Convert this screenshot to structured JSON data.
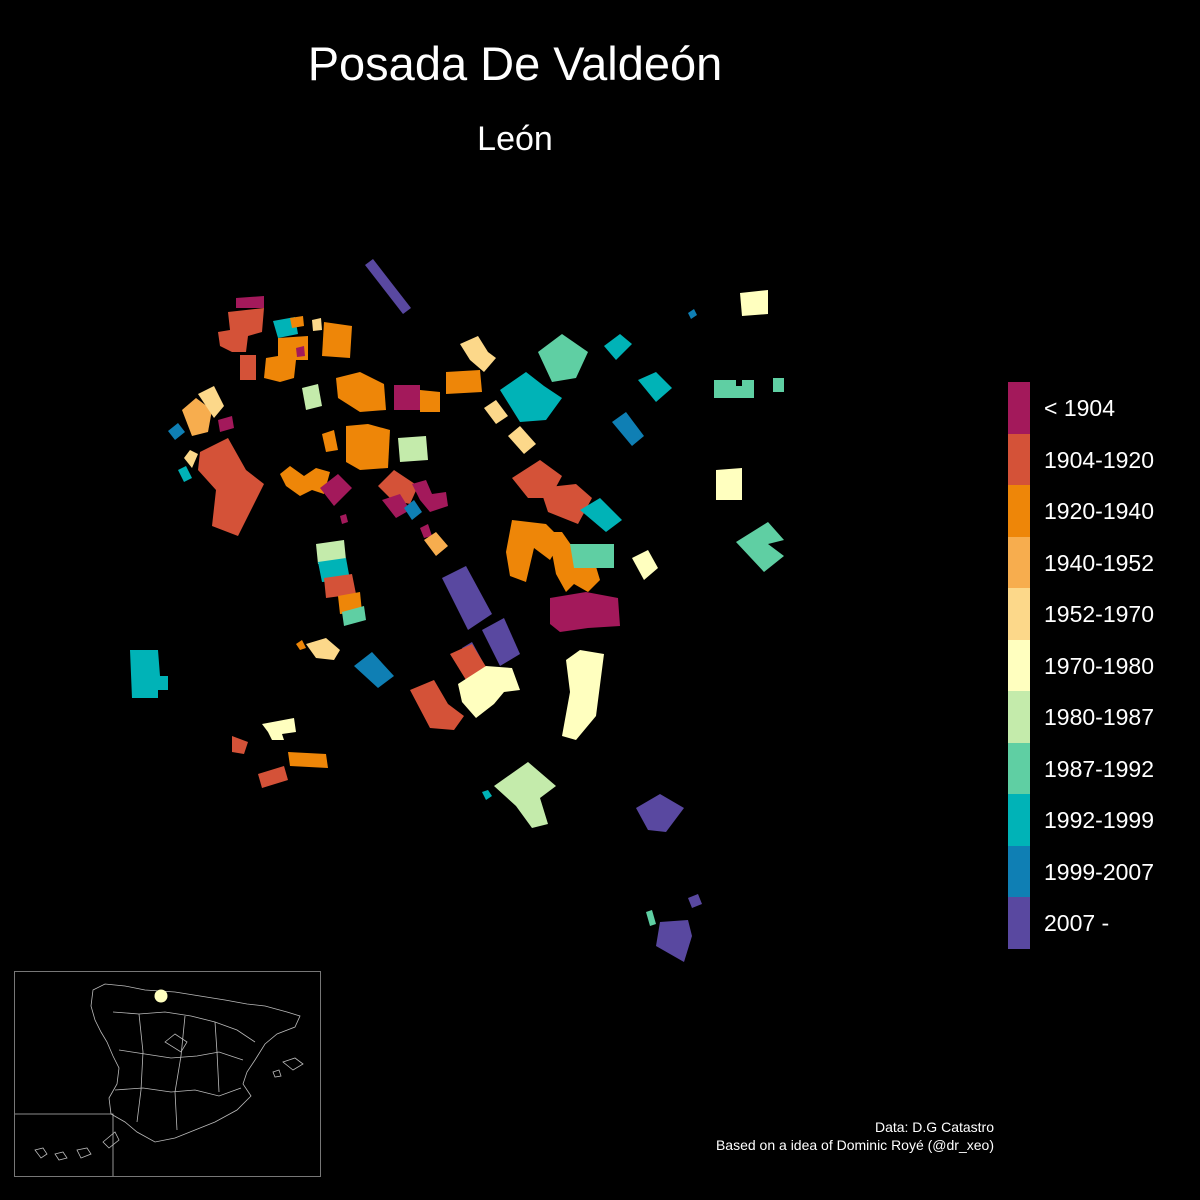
{
  "title": "Posada De Valdeón",
  "subtitle": "León",
  "legend": {
    "items": [
      {
        "label": "< 1904",
        "color": "#a3195b"
      },
      {
        "label": "1904-1920",
        "color": "#d45238"
      },
      {
        "label": "1920-1940",
        "color": "#ee8608"
      },
      {
        "label": "1940-1952",
        "color": "#f7ad4e"
      },
      {
        "label": "1952-1970",
        "color": "#fcd88a"
      },
      {
        "label": "1970-1980",
        "color": "#ffffbf"
      },
      {
        "label": "1980-1987",
        "color": "#c4ebab"
      },
      {
        "label": "1987-1992",
        "color": "#5fcfa3"
      },
      {
        "label": "1992-1999",
        "color": "#00b3b7"
      },
      {
        "label": "1999-2007",
        "color": "#0f7fb4"
      },
      {
        "label": "2007 -",
        "color": "#5948a0"
      }
    ]
  },
  "inset": {
    "marker_color": "#ffffbf"
  },
  "credits": {
    "line1": "Data: D.G Catastro",
    "line2": "Based on a idea of Dominic Royé (@dr_xeo)"
  }
}
